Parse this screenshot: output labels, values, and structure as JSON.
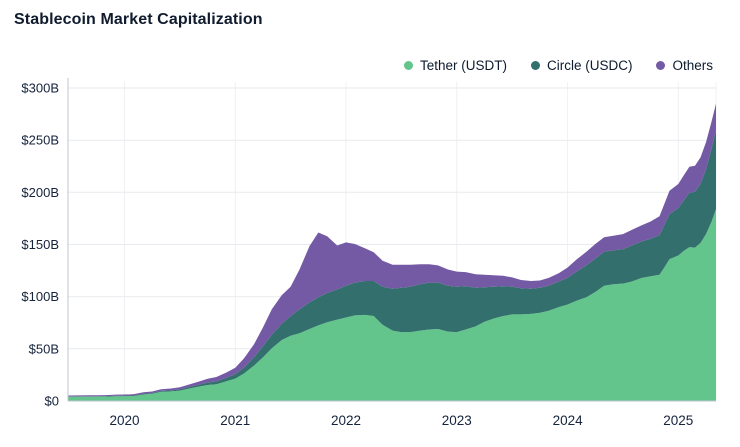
{
  "header": {
    "title": "Stablecoin Market Capitalization"
  },
  "chart_data": {
    "type": "area",
    "stacked": true,
    "title": "Stablecoin Market Capitalization",
    "legend_position": "top-right",
    "grid": "horizontal-and-vertical",
    "x_domain": [
      2019.49,
      2025.34
    ],
    "y_domain": [
      0,
      300
    ],
    "x_ticks": [
      {
        "value": 2020,
        "label": "2020"
      },
      {
        "value": 2021,
        "label": "2021"
      },
      {
        "value": 2022,
        "label": "2022"
      },
      {
        "value": 2023,
        "label": "2023"
      },
      {
        "value": 2024,
        "label": "2024"
      },
      {
        "value": 2025,
        "label": "2025"
      }
    ],
    "y_ticks": [
      {
        "value": 0,
        "label": "$0"
      },
      {
        "value": 50,
        "label": "$50B"
      },
      {
        "value": 100,
        "label": "$100B"
      },
      {
        "value": 150,
        "label": "$150B"
      },
      {
        "value": 200,
        "label": "$200B"
      },
      {
        "value": 250,
        "label": "$250B"
      },
      {
        "value": 300,
        "label": "$300B"
      }
    ],
    "x": [
      2019.49,
      2019.58,
      2019.67,
      2019.75,
      2019.83,
      2019.92,
      2020.0,
      2020.08,
      2020.17,
      2020.25,
      2020.33,
      2020.42,
      2020.5,
      2020.58,
      2020.67,
      2020.75,
      2020.83,
      2020.92,
      2021.0,
      2021.08,
      2021.17,
      2021.25,
      2021.33,
      2021.42,
      2021.5,
      2021.58,
      2021.67,
      2021.75,
      2021.83,
      2021.92,
      2022.0,
      2022.08,
      2022.17,
      2022.25,
      2022.33,
      2022.42,
      2022.5,
      2022.58,
      2022.67,
      2022.75,
      2022.83,
      2022.92,
      2023.0,
      2023.08,
      2023.17,
      2023.25,
      2023.33,
      2023.42,
      2023.5,
      2023.58,
      2023.67,
      2023.75,
      2023.83,
      2023.92,
      2024.0,
      2024.08,
      2024.17,
      2024.25,
      2024.33,
      2024.42,
      2024.5,
      2024.58,
      2024.67,
      2024.75,
      2024.83,
      2024.88,
      2024.92,
      2025.0,
      2025.05,
      2025.1,
      2025.15,
      2025.2,
      2025.25,
      2025.3,
      2025.34
    ],
    "series": [
      {
        "name": "Tether (USDT)",
        "color": "#63c58c",
        "values": [
          4.0,
          4.0,
          4.1,
          4.1,
          4.2,
          4.6,
          4.6,
          4.7,
          6.2,
          6.9,
          8.8,
          9.2,
          10.0,
          11.9,
          13.8,
          15.3,
          16.0,
          19.0,
          21.5,
          26.5,
          34.0,
          42.0,
          50.5,
          58.5,
          62.5,
          65.0,
          69.0,
          72.5,
          75.5,
          78.0,
          80.0,
          82.0,
          82.5,
          81.5,
          73.0,
          67.5,
          66.0,
          66.0,
          67.5,
          68.5,
          69.0,
          66.5,
          66.0,
          68.5,
          71.5,
          76.0,
          79.0,
          81.5,
          83.0,
          83.0,
          83.5,
          84.5,
          86.5,
          90.0,
          92.5,
          96.0,
          99.5,
          104.5,
          110.5,
          112.0,
          112.5,
          114.5,
          118.0,
          119.5,
          121.0,
          129.0,
          136.0,
          139.5,
          144.0,
          147.5,
          147.0,
          151.5,
          160.0,
          172.0,
          184.0
        ]
      },
      {
        "name": "Circle (USDC)",
        "color": "#326f6d",
        "values": [
          0.4,
          0.45,
          0.45,
          0.5,
          0.5,
          0.5,
          0.55,
          0.55,
          0.7,
          0.75,
          0.85,
          1.0,
          1.1,
          1.4,
          1.8,
          2.4,
          2.8,
          3.3,
          4.1,
          5.6,
          8.0,
          10.5,
          13.0,
          15.5,
          19.0,
          23.0,
          25.5,
          27.0,
          28.0,
          29.0,
          30.5,
          31.5,
          32.5,
          33.5,
          36.5,
          40.0,
          42.5,
          43.5,
          44.5,
          45.0,
          44.5,
          44.0,
          43.5,
          41.5,
          37.0,
          33.0,
          30.5,
          28.5,
          26.5,
          25.0,
          24.0,
          24.0,
          24.0,
          24.5,
          25.5,
          28.0,
          30.5,
          32.0,
          32.5,
          32.5,
          33.0,
          34.5,
          35.0,
          36.0,
          38.0,
          41.0,
          43.0,
          45.5,
          48.5,
          52.0,
          53.5,
          56.5,
          62.0,
          70.0,
          76.0
        ]
      },
      {
        "name": "Others",
        "color": "#7459a4",
        "values": [
          0.9,
          0.95,
          1.0,
          1.0,
          1.0,
          1.05,
          1.1,
          1.2,
          1.4,
          1.5,
          1.6,
          1.8,
          2.0,
          2.4,
          3.0,
          3.6,
          4.2,
          5.0,
          6.2,
          8.8,
          12.5,
          18.0,
          24.5,
          27.5,
          28.0,
          38.0,
          54.0,
          62.0,
          54.5,
          42.0,
          41.5,
          37.0,
          31.5,
          27.5,
          25.0,
          23.0,
          22.0,
          21.0,
          19.0,
          17.5,
          16.5,
          15.5,
          14.5,
          13.5,
          13.0,
          12.0,
          11.0,
          10.0,
          9.0,
          8.0,
          7.5,
          7.0,
          7.5,
          8.0,
          10.0,
          11.5,
          13.0,
          14.0,
          14.0,
          14.0,
          14.5,
          15.0,
          15.5,
          16.5,
          18.0,
          20.5,
          22.5,
          23.0,
          24.0,
          25.0,
          25.0,
          25.5,
          26.0,
          26.0,
          25.0
        ]
      }
    ],
    "colors": {
      "tether": "#63c58c",
      "circle": "#326f6d",
      "others": "#7459a4",
      "gridline": "#e7eaee",
      "axis_line": "#bfc7d0",
      "tick_text": "#15233c",
      "title_text": "#101b2e"
    }
  }
}
